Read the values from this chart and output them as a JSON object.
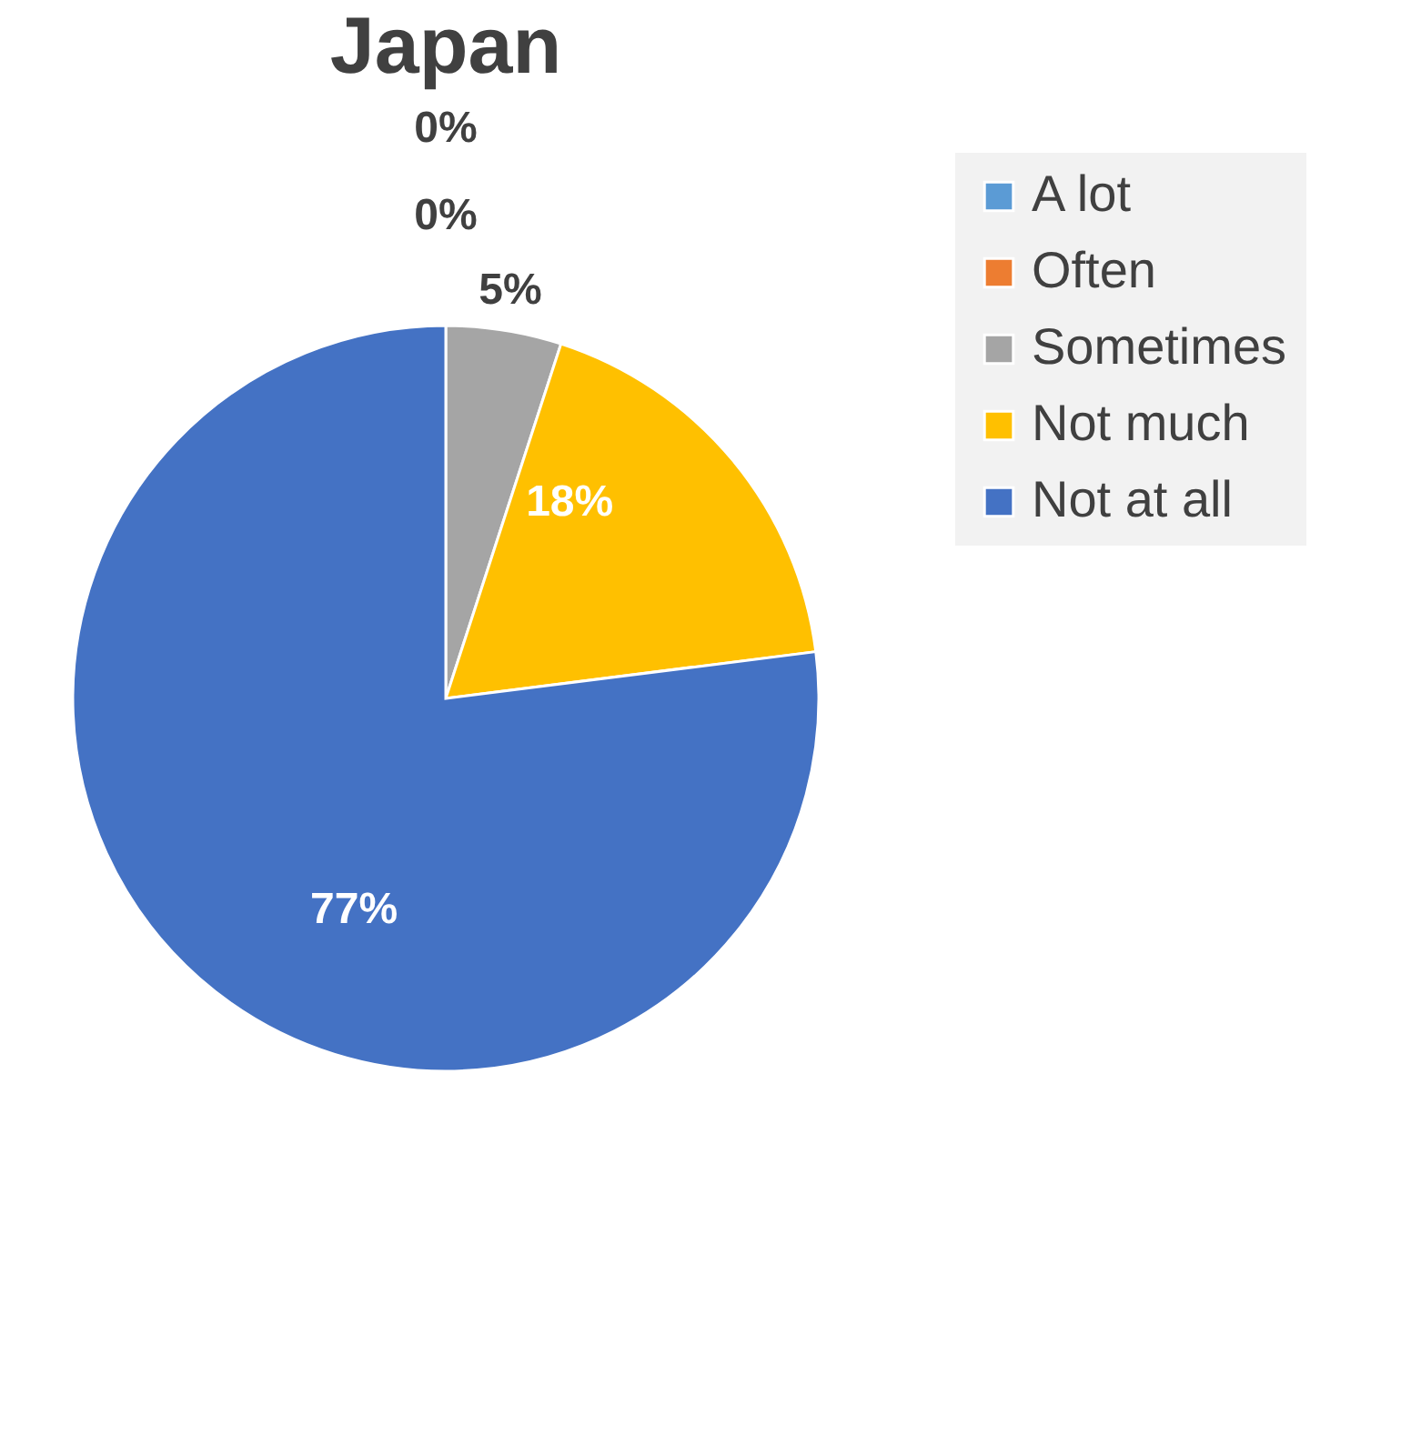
{
  "chart_data": {
    "type": "pie",
    "title": "Japan",
    "categories": [
      "A lot",
      "Often",
      "Sometimes",
      "Not much",
      "Not at all"
    ],
    "values": [
      0,
      0,
      5,
      18,
      77
    ],
    "colors": [
      "#5b9bd5",
      "#ed7d31",
      "#a5a5a5",
      "#ffc000",
      "#4472c4"
    ],
    "value_labels": [
      "0%",
      "0%",
      "5%",
      "18%",
      "77%"
    ],
    "legend": "right"
  }
}
